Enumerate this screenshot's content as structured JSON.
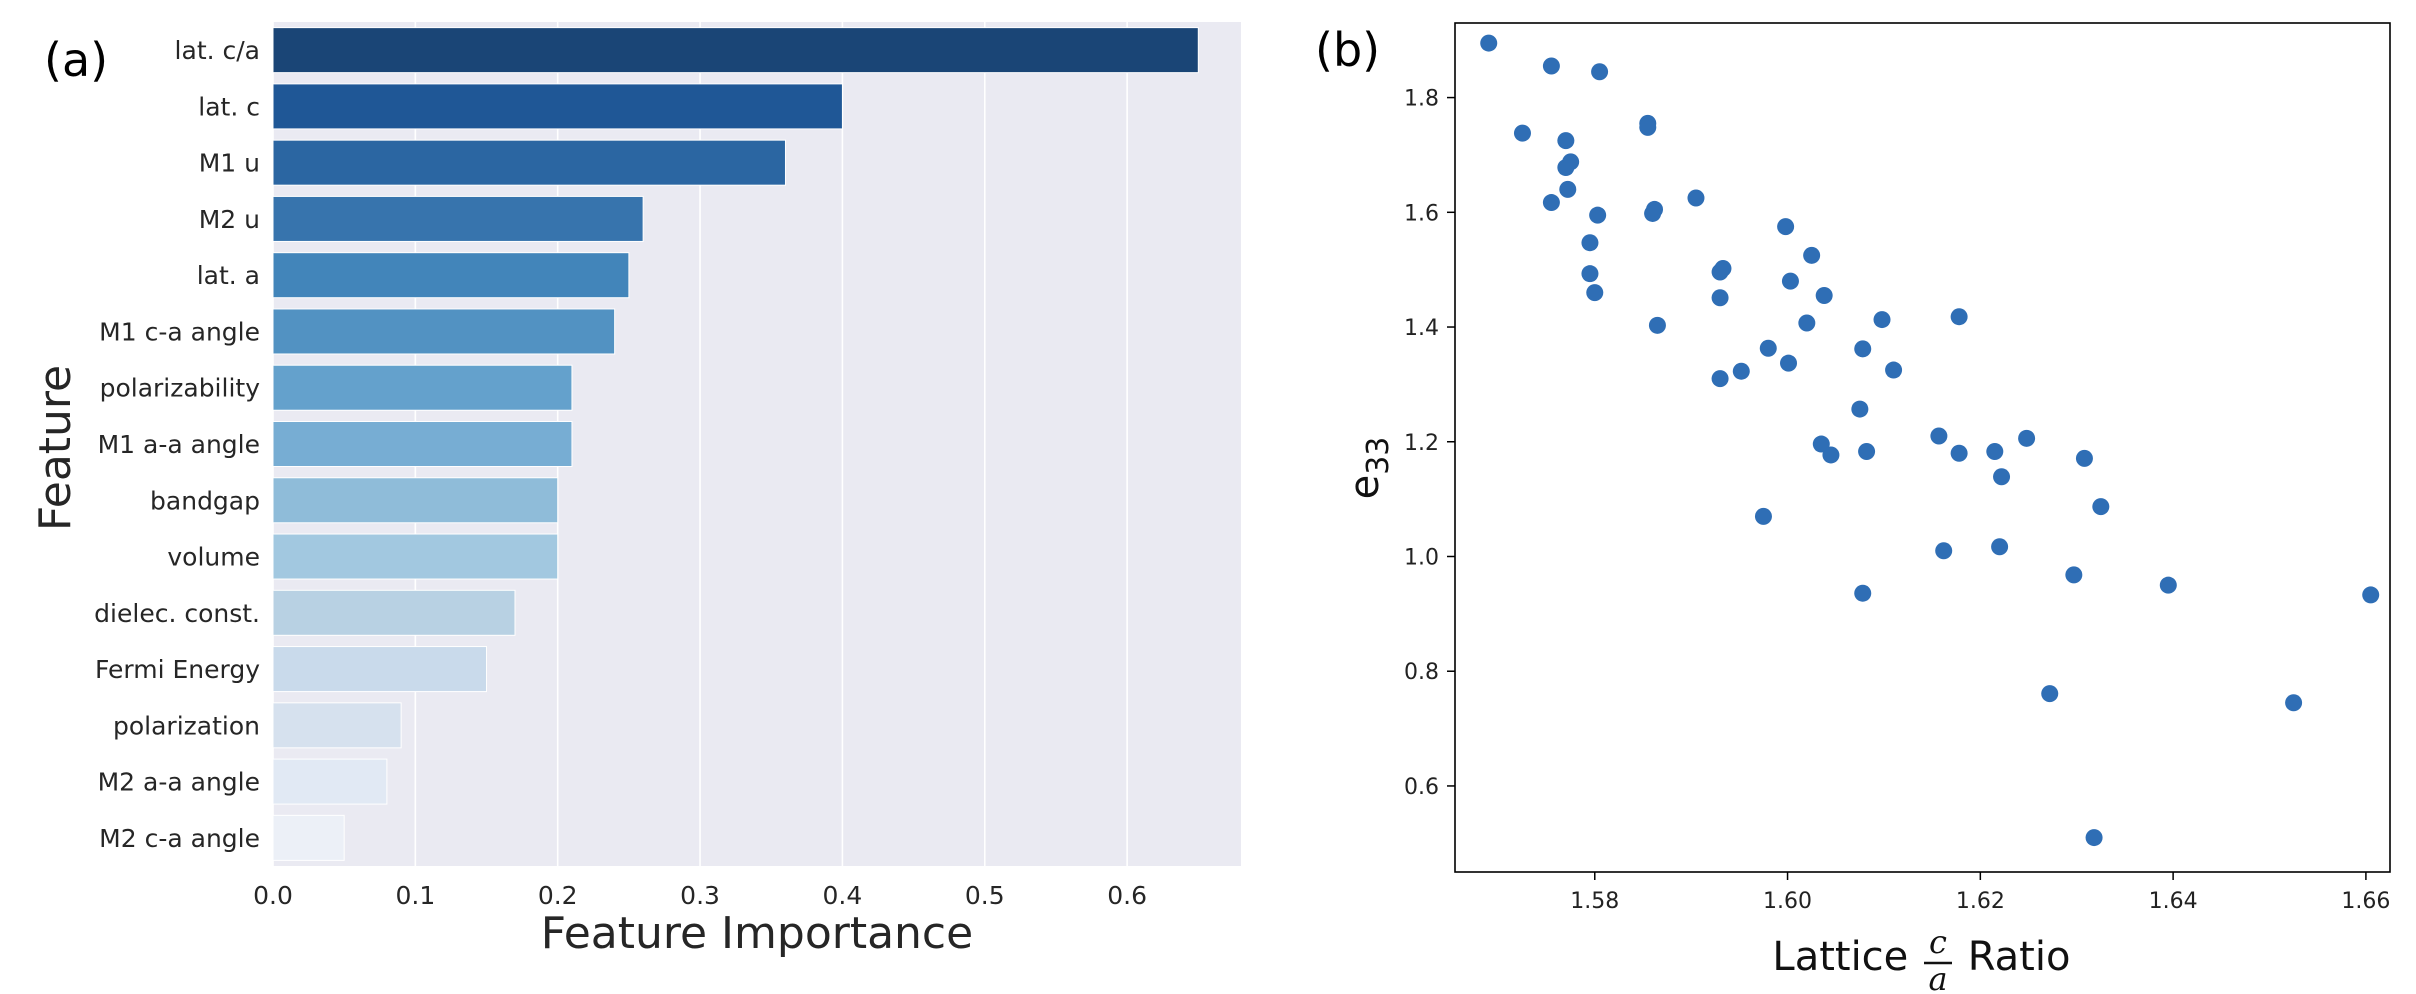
{
  "chart_data": [
    {
      "type": "bar",
      "orientation": "horizontal",
      "panel_label": "(a)",
      "xlabel": "Feature Importance",
      "ylabel": "Feature",
      "xlim": [
        0.0,
        0.68
      ],
      "xticks": [
        "0.0",
        "0.1",
        "0.2",
        "0.3",
        "0.4",
        "0.5",
        "0.6"
      ],
      "grid": true,
      "categories": [
        "lat. c/a",
        "lat. c",
        "M1 u",
        "M2 u",
        "lat. a",
        "M1 c-a angle",
        "polarizability",
        "M1 a-a angle",
        "bandgap",
        "volume",
        "dielec. const.",
        "Fermi Energy",
        "polarization",
        "M2 a-a angle",
        "M2 c-a angle"
      ],
      "values": [
        0.65,
        0.4,
        0.36,
        0.26,
        0.25,
        0.24,
        0.21,
        0.21,
        0.2,
        0.2,
        0.17,
        0.15,
        0.09,
        0.08,
        0.05
      ],
      "colors": [
        "#1a4576",
        "#1f5796",
        "#2b66a2",
        "#3774ad",
        "#4285ba",
        "#5292c2",
        "#64a1cc",
        "#77add3",
        "#8fbcd9",
        "#a2c8e0",
        "#b8d1e3",
        "#c9daeb",
        "#d6e1ee",
        "#e1e9f4",
        "#ecf0f7"
      ]
    },
    {
      "type": "scatter",
      "panel_label": "(b)",
      "xlabel_prefix": "Lattice ",
      "xlabel_num": "c",
      "xlabel_den": "a",
      "xlabel_suffix": " Ratio",
      "ylabel_base": "e",
      "ylabel_sub": "33",
      "xlim": [
        1.5655,
        1.6625
      ],
      "ylim": [
        0.45,
        1.93
      ],
      "xticks": [
        "1.58",
        "1.60",
        "1.62",
        "1.64",
        "1.66"
      ],
      "yticks": [
        "0.6",
        "0.8",
        "1.0",
        "1.2",
        "1.4",
        "1.6",
        "1.8"
      ],
      "marker_color": "#2f6eb5",
      "points": [
        [
          1.569,
          1.895
        ],
        [
          1.5755,
          1.855
        ],
        [
          1.5805,
          1.845
        ],
        [
          1.5725,
          1.738
        ],
        [
          1.577,
          1.725
        ],
        [
          1.5855,
          1.755
        ],
        [
          1.5855,
          1.748
        ],
        [
          1.5775,
          1.688
        ],
        [
          1.577,
          1.678
        ],
        [
          1.5772,
          1.64
        ],
        [
          1.5755,
          1.617
        ],
        [
          1.5803,
          1.595
        ],
        [
          1.5862,
          1.605
        ],
        [
          1.586,
          1.598
        ],
        [
          1.5905,
          1.625
        ],
        [
          1.5795,
          1.547
        ],
        [
          1.5795,
          1.493
        ],
        [
          1.58,
          1.46
        ],
        [
          1.5865,
          1.403
        ],
        [
          1.5998,
          1.575
        ],
        [
          1.6025,
          1.525
        ],
        [
          1.5933,
          1.502
        ],
        [
          1.593,
          1.496
        ],
        [
          1.6003,
          1.48
        ],
        [
          1.593,
          1.451
        ],
        [
          1.6038,
          1.455
        ],
        [
          1.6098,
          1.413
        ],
        [
          1.602,
          1.407
        ],
        [
          1.6178,
          1.418
        ],
        [
          1.598,
          1.363
        ],
        [
          1.6078,
          1.362
        ],
        [
          1.6001,
          1.337
        ],
        [
          1.5952,
          1.323
        ],
        [
          1.611,
          1.325
        ],
        [
          1.593,
          1.31
        ],
        [
          1.6075,
          1.257
        ],
        [
          1.6157,
          1.21
        ],
        [
          1.6248,
          1.206
        ],
        [
          1.6035,
          1.196
        ],
        [
          1.6045,
          1.177
        ],
        [
          1.6082,
          1.183
        ],
        [
          1.6178,
          1.18
        ],
        [
          1.6215,
          1.183
        ],
        [
          1.6308,
          1.171
        ],
        [
          1.6222,
          1.139
        ],
        [
          1.6325,
          1.087
        ],
        [
          1.5975,
          1.07
        ],
        [
          1.6162,
          1.01
        ],
        [
          1.622,
          1.017
        ],
        [
          1.6297,
          0.968
        ],
        [
          1.6395,
          0.95
        ],
        [
          1.6078,
          0.936
        ],
        [
          1.6605,
          0.933
        ],
        [
          1.6272,
          0.761
        ],
        [
          1.6525,
          0.745
        ],
        [
          1.6318,
          0.51
        ]
      ]
    }
  ]
}
